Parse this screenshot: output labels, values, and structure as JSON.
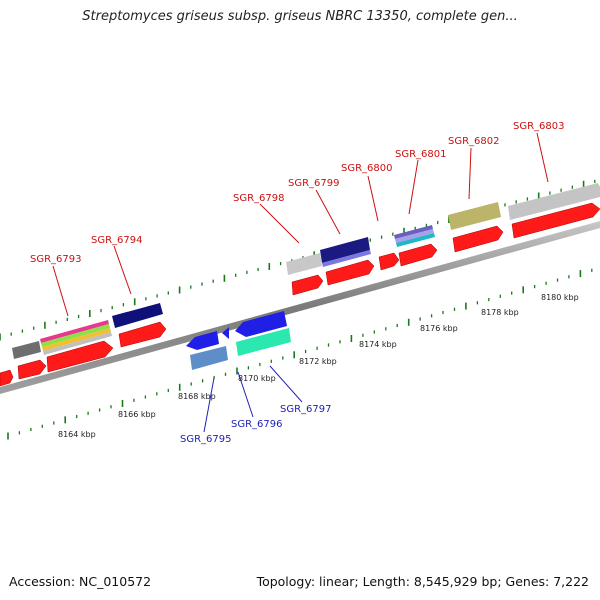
{
  "title": "Streptomyces griseus subsp. griseus NBRC 13350, complete gen...",
  "footer": {
    "accession": "Accession: NC_010572",
    "summary": "Topology: linear; Length: 8,545,929 bp; Genes: 7,222"
  },
  "colors": {
    "forward_label": "#cc1111",
    "reverse_label": "#1f22b8",
    "tick": "#1a7a1a",
    "strand": "#8c8c8c"
  },
  "tick_labels": [
    "8164 kbp",
    "8166 kbp",
    "8168 kbp",
    "8170 kbp",
    "8172 kbp",
    "8174 kbp",
    "8176 kbp",
    "8178 kbp",
    "8180 kbp"
  ],
  "forward_genes": [
    "SGR_6793",
    "SGR_6794",
    "SGR_6798",
    "SGR_6799",
    "SGR_6800",
    "SGR_6801",
    "SGR_6802",
    "SGR_6803"
  ],
  "reverse_genes": [
    "SGR_6795",
    "SGR_6796",
    "SGR_6797"
  ]
}
